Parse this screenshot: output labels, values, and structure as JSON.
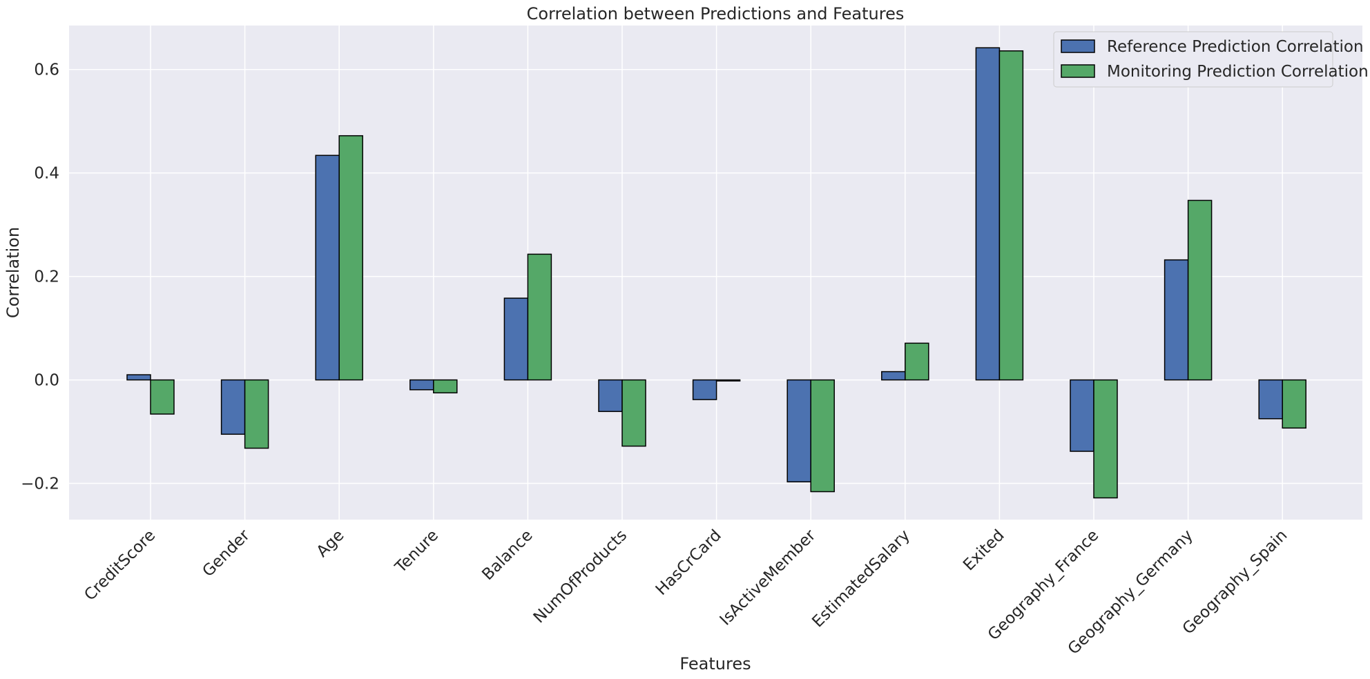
{
  "chart_data": {
    "type": "bar",
    "title": "Correlation between Predictions and Features",
    "xlabel": "Features",
    "ylabel": "Correlation",
    "ylim": [
      -0.27,
      0.685
    ],
    "yticks": [
      -0.2,
      0.0,
      0.2,
      0.4,
      0.6
    ],
    "ytick_labels": [
      "−0.2",
      "0.0",
      "0.2",
      "0.4",
      "0.6"
    ],
    "grid": true,
    "legend_position": "top-right",
    "categories": [
      "CreditScore",
      "Gender",
      "Age",
      "Tenure",
      "Balance",
      "NumOfProducts",
      "HasCrCard",
      "IsActiveMember",
      "EstimatedSalary",
      "Exited",
      "Geography_France",
      "Geography_Germany",
      "Geography_Spain"
    ],
    "series": [
      {
        "name": "Reference Prediction Correlation",
        "color": "#4c72b0",
        "values": [
          0.01,
          -0.105,
          0.434,
          -0.019,
          0.158,
          -0.061,
          -0.038,
          -0.197,
          0.016,
          0.642,
          -0.138,
          0.232,
          -0.075
        ]
      },
      {
        "name": "Monitoring Prediction Correlation",
        "color": "#55a868",
        "values": [
          -0.066,
          -0.132,
          0.472,
          -0.025,
          0.243,
          -0.128,
          -0.002,
          -0.216,
          0.071,
          0.636,
          -0.228,
          0.347,
          -0.093
        ]
      }
    ]
  }
}
